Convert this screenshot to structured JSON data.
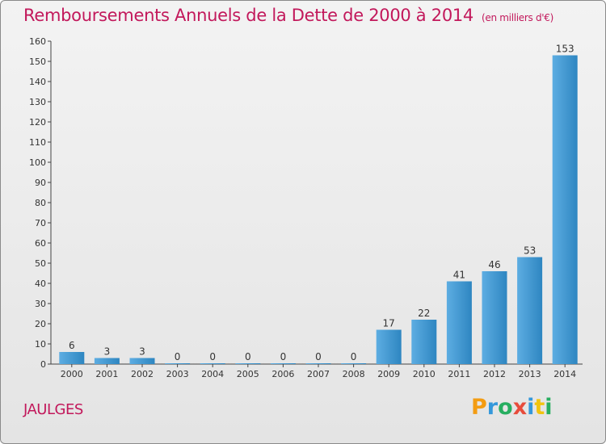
{
  "title": "Remboursements Annuels de la Dette de 2000 à 2014",
  "subtitle": "(en milliers d'€)",
  "commune": "JAULGES",
  "logo_text": "Proxiti",
  "colors": {
    "title": "#c2185b",
    "bar_light": "#5dade2",
    "bar_dark": "#2e86c1"
  },
  "chart_data": {
    "type": "bar",
    "title": "Remboursements Annuels de la Dette de 2000 à 2014",
    "subtitle": "(en milliers d'€)",
    "xlabel": "",
    "ylabel": "",
    "categories": [
      "2000",
      "2001",
      "2002",
      "2003",
      "2004",
      "2005",
      "2006",
      "2007",
      "2008",
      "2009",
      "2010",
      "2011",
      "2012",
      "2013",
      "2014"
    ],
    "values": [
      6,
      3,
      3,
      0,
      0,
      0,
      0,
      0,
      0,
      17,
      22,
      41,
      46,
      53,
      153
    ],
    "ylim": [
      0,
      160
    ],
    "yticks": [
      0,
      10,
      20,
      30,
      40,
      50,
      60,
      70,
      80,
      90,
      100,
      110,
      120,
      130,
      140,
      150,
      160
    ],
    "grid": false,
    "legend": "none"
  }
}
